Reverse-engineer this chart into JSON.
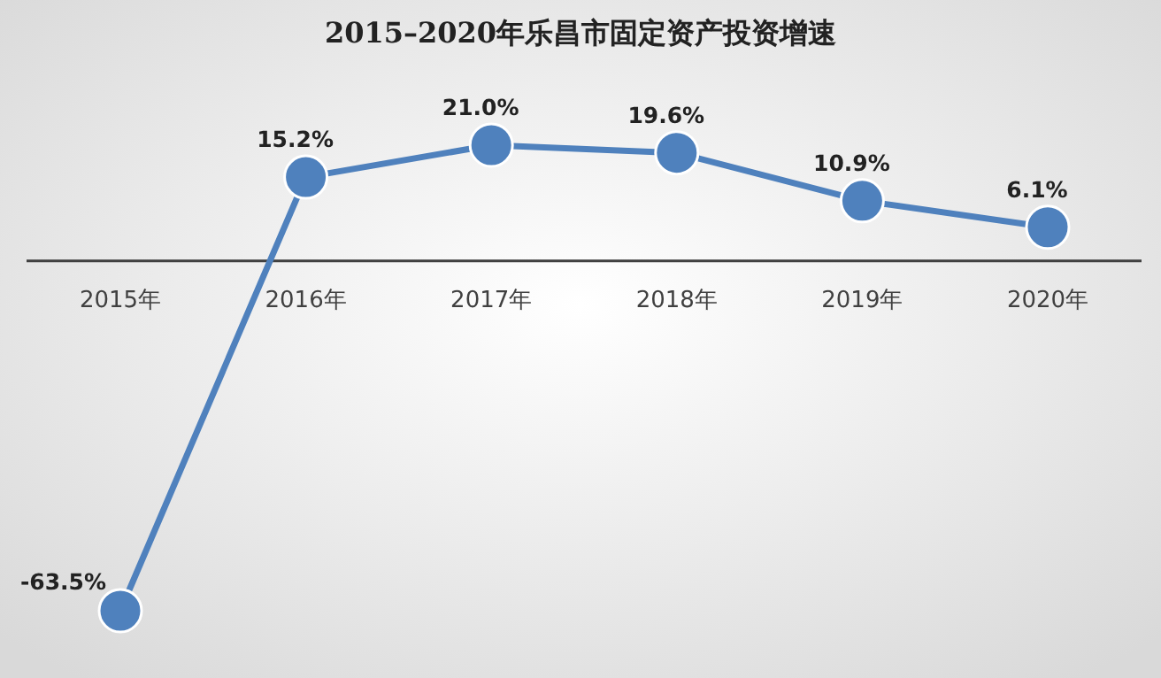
{
  "chart_data": {
    "type": "line",
    "title": "2015–2020年乐昌市固定资产投资增速",
    "categories": [
      "2015年",
      "2016年",
      "2017年",
      "2018年",
      "2019年",
      "2020年"
    ],
    "series": [
      {
        "color": "#4f81bd",
        "values": [
          -63.5,
          15.2,
          21.0,
          19.6,
          10.9,
          6.1
        ],
        "value_labels": [
          "-63.5%",
          "15.2%",
          "21.0%",
          "19.6%",
          "10.9%",
          "6.1%"
        ]
      }
    ],
    "marker": "circle",
    "line_style": "solid"
  }
}
